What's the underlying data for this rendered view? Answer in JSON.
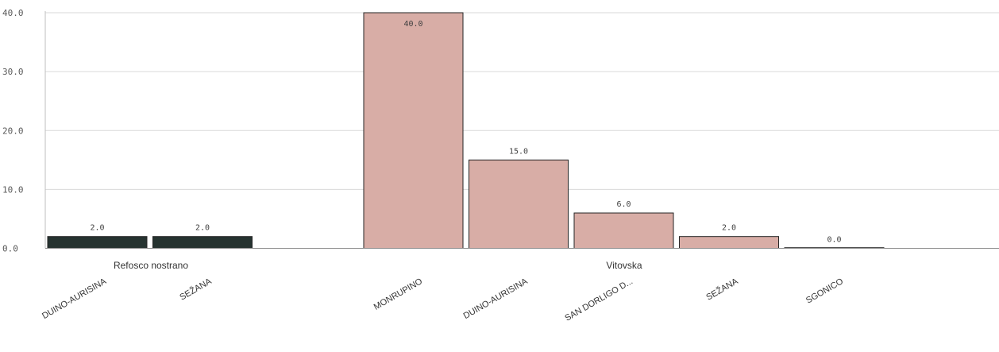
{
  "chart_data": {
    "type": "bar",
    "ylim": [
      0,
      40
    ],
    "y_ticks": [
      "0.0",
      "10.0",
      "20.0",
      "30.0",
      "40.0"
    ],
    "grid": true,
    "groups": [
      {
        "name": "Refosco nostrano",
        "color": "#263330",
        "bars": [
          {
            "category": "DUINO-AURISINA",
            "value": 2.0,
            "label": "2.0"
          },
          {
            "category": "SEŽANA",
            "value": 2.0,
            "label": "2.0"
          }
        ]
      },
      {
        "name": "Vitovska",
        "color": "#d8ada6",
        "bars": [
          {
            "category": "MONRUPINO",
            "value": 40.0,
            "label": "40.0"
          },
          {
            "category": "DUINO-AURISINA",
            "value": 15.0,
            "label": "15.0"
          },
          {
            "category": "SAN DORLIGO D...",
            "value": 6.0,
            "label": "6.0"
          },
          {
            "category": "SEŽANA",
            "value": 2.0,
            "label": "2.0"
          },
          {
            "category": "SGONICO",
            "value": 0.0,
            "label": "0.0"
          }
        ]
      }
    ]
  }
}
